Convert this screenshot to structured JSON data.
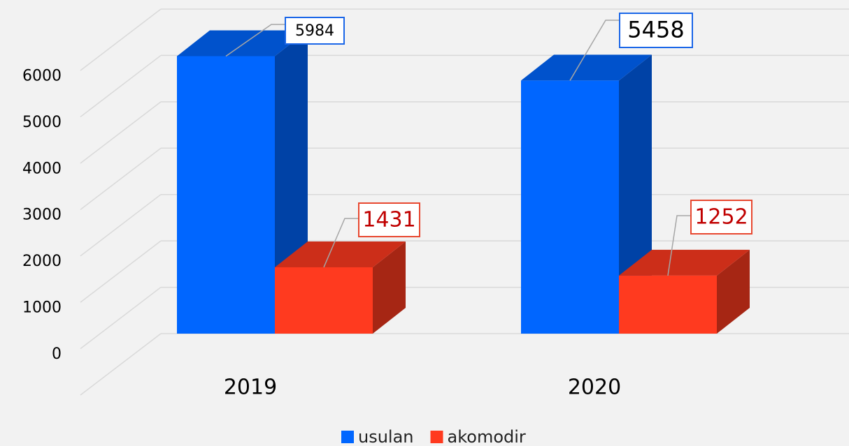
{
  "chart_data": {
    "type": "bar3d",
    "categories": [
      "2019",
      "2020"
    ],
    "series": [
      {
        "name": "usulan",
        "color": "#0066ff",
        "values": [
          5984,
          5458
        ]
      },
      {
        "name": "akomodir",
        "color": "#ff3a1f",
        "values": [
          1431,
          1252
        ]
      }
    ],
    "ylim": [
      0,
      7000
    ],
    "yticks": [
      0,
      1000,
      2000,
      3000,
      4000,
      5000,
      6000
    ],
    "grid": true,
    "legend": "bottom"
  }
}
